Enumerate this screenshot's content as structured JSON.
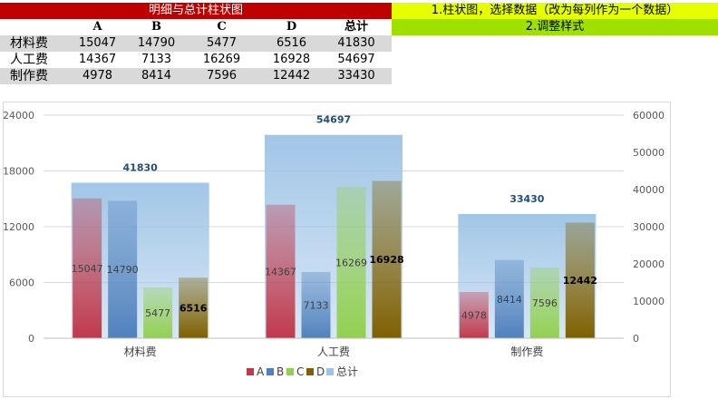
{
  "table": {
    "title": "明细与总计柱状图",
    "headers": [
      "A",
      "B",
      "C",
      "D",
      "总计"
    ],
    "rows": [
      {
        "label": "材料费",
        "values": [
          "15047",
          "14790",
          "5477",
          "6516",
          "41830"
        ]
      },
      {
        "label": "人工费",
        "values": [
          "14367",
          "7133",
          "16269",
          "16928",
          "54697"
        ]
      },
      {
        "label": "制作费",
        "values": [
          "4978",
          "8414",
          "7596",
          "12442",
          "33430"
        ]
      }
    ]
  },
  "notes": {
    "step1": "1.柱状图，选择数据（改为每列作为一个数据）",
    "step2": "2.调整样式"
  },
  "chart_data": {
    "type": "bar",
    "categories": [
      "材料费",
      "人工费",
      "制作费"
    ],
    "series": [
      {
        "name": "A",
        "values": [
          15047,
          14367,
          4978
        ],
        "color": "#c0394b",
        "axis": "primary"
      },
      {
        "name": "B",
        "values": [
          14790,
          7133,
          8414
        ],
        "color": "#4f81bd",
        "axis": "primary"
      },
      {
        "name": "C",
        "values": [
          5477,
          16269,
          7596
        ],
        "color": "#92d050",
        "axis": "primary"
      },
      {
        "name": "D",
        "values": [
          6516,
          16928,
          12442
        ],
        "color": "#7f6000",
        "axis": "primary"
      },
      {
        "name": "总计",
        "values": [
          41830,
          54697,
          33430
        ],
        "color": "#9dc3e6",
        "axis": "secondary"
      }
    ],
    "ylim_primary": [
      0,
      24000
    ],
    "yticks_primary": [
      0,
      6000,
      12000,
      18000,
      24000
    ],
    "ylim_secondary": [
      0,
      60000
    ],
    "yticks_secondary": [
      0,
      10000,
      20000,
      30000,
      40000,
      50000,
      60000
    ],
    "grid": true,
    "legend": "bottom"
  }
}
